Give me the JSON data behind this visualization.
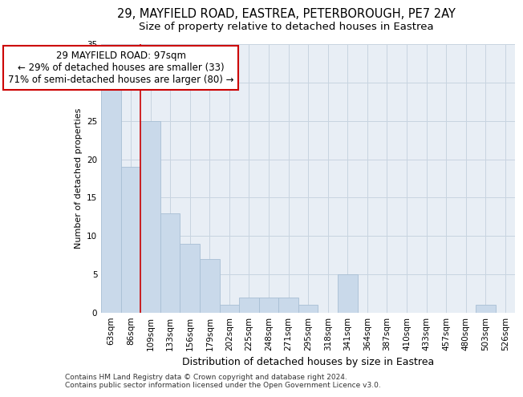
{
  "title_line1": "29, MAYFIELD ROAD, EASTREA, PETERBOROUGH, PE7 2AY",
  "title_line2": "Size of property relative to detached houses in Eastrea",
  "xlabel": "Distribution of detached houses by size in Eastrea",
  "ylabel": "Number of detached properties",
  "categories": [
    "63sqm",
    "86sqm",
    "109sqm",
    "133sqm",
    "156sqm",
    "179sqm",
    "202sqm",
    "225sqm",
    "248sqm",
    "271sqm",
    "295sqm",
    "318sqm",
    "341sqm",
    "364sqm",
    "387sqm",
    "410sqm",
    "433sqm",
    "457sqm",
    "480sqm",
    "503sqm",
    "526sqm"
  ],
  "values": [
    29,
    19,
    25,
    13,
    9,
    7,
    1,
    2,
    2,
    2,
    1,
    0,
    5,
    0,
    0,
    0,
    0,
    0,
    0,
    1,
    0
  ],
  "bar_color": "#c9d9ea",
  "bar_edgecolor": "#a8bfd4",
  "vline_color": "#cc0000",
  "annotation_text": "29 MAYFIELD ROAD: 97sqm\n← 29% of detached houses are smaller (33)\n71% of semi-detached houses are larger (80) →",
  "annotation_box_color": "white",
  "annotation_box_edgecolor": "#cc0000",
  "ylim": [
    0,
    35
  ],
  "yticks": [
    0,
    5,
    10,
    15,
    20,
    25,
    30,
    35
  ],
  "grid_color": "#c8d4e0",
  "bg_color": "#e8eef5",
  "footer_text": "Contains HM Land Registry data © Crown copyright and database right 2024.\nContains public sector information licensed under the Open Government Licence v3.0.",
  "title_fontsize": 10.5,
  "subtitle_fontsize": 9.5,
  "xlabel_fontsize": 9,
  "ylabel_fontsize": 8,
  "tick_fontsize": 7.5,
  "annotation_fontsize": 8.5,
  "footer_fontsize": 6.5
}
